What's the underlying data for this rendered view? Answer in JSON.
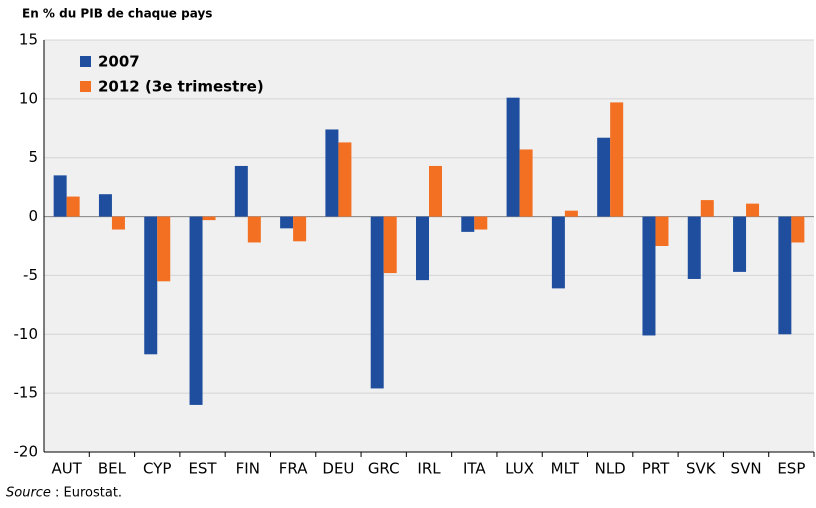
{
  "chart_data": {
    "type": "bar",
    "subtitle": "En % du PIB de chaque pays",
    "categories": [
      "AUT",
      "BEL",
      "CYP",
      "EST",
      "FIN",
      "FRA",
      "DEU",
      "GRC",
      "IRL",
      "ITA",
      "LUX",
      "MLT",
      "NLD",
      "PRT",
      "SVK",
      "SVN",
      "ESP"
    ],
    "series": [
      {
        "name": "2007",
        "color": "#1f4e9e",
        "values": [
          3.5,
          1.9,
          -11.7,
          -16.0,
          4.3,
          -1.0,
          7.4,
          -14.6,
          -5.4,
          -1.3,
          10.1,
          -6.1,
          6.7,
          -10.1,
          -5.3,
          -4.7,
          -10.0
        ]
      },
      {
        "name": "2012 (3e trimestre)",
        "color": "#f36f21",
        "values": [
          1.7,
          -1.1,
          -5.5,
          -0.3,
          -2.2,
          -2.1,
          6.3,
          -4.8,
          4.3,
          -1.1,
          5.7,
          0.5,
          9.7,
          -2.5,
          1.4,
          1.1,
          -2.2
        ]
      }
    ],
    "ylim": [
      -20,
      15
    ],
    "yticks": [
      -20,
      -15,
      -10,
      -5,
      0,
      5,
      10,
      15
    ],
    "grid": true,
    "legend": "top-left",
    "source_label": "Source",
    "source_text": ": Eurostat."
  }
}
